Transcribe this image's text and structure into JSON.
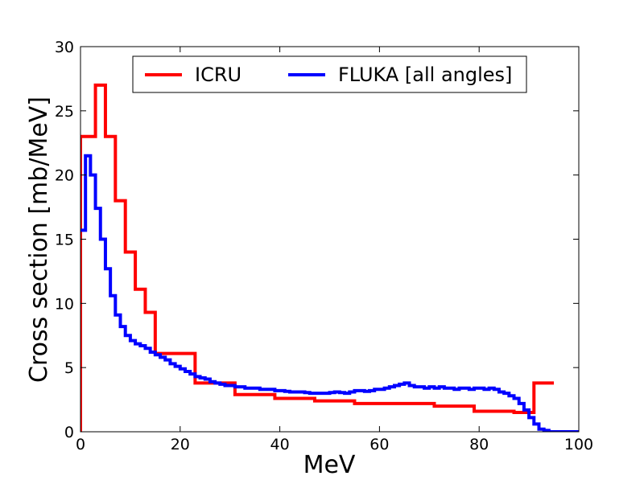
{
  "chart_data": {
    "type": "line",
    "step": true,
    "title": "",
    "xlabel": "MeV",
    "ylabel": "Cross section [mb/MeV]",
    "xlim": [
      0,
      100
    ],
    "ylim": [
      0,
      30
    ],
    "xticks": [
      0,
      20,
      40,
      60,
      80,
      100
    ],
    "yticks": [
      0,
      5,
      10,
      15,
      20,
      25,
      30
    ],
    "grid": false,
    "legend_position": "top-center",
    "series": [
      {
        "name": "ICRU",
        "color": "#ff0000",
        "x": [
          0,
          0,
          3,
          5,
          7,
          9,
          11,
          13,
          15,
          23,
          31,
          39,
          47,
          55,
          63,
          71,
          79,
          87,
          91,
          95
        ],
        "y": [
          0,
          23,
          27,
          23,
          18,
          14,
          11.1,
          9.3,
          6.1,
          3.8,
          2.9,
          2.6,
          2.4,
          2.2,
          2.2,
          2.0,
          1.6,
          1.5,
          3.8,
          3.8
        ]
      },
      {
        "name": "FLUKA [all angles]",
        "color": "#0000ff",
        "x": [
          0,
          1,
          2,
          3,
          4,
          5,
          6,
          7,
          8,
          9,
          10,
          11,
          12,
          13,
          14,
          15,
          16,
          17,
          18,
          19,
          20,
          21,
          22,
          23,
          24,
          25,
          26,
          27,
          28,
          29,
          30,
          31,
          32,
          33,
          34,
          35,
          36,
          37,
          38,
          39,
          40,
          41,
          42,
          43,
          44,
          45,
          46,
          47,
          48,
          49,
          50,
          51,
          52,
          53,
          54,
          55,
          56,
          57,
          58,
          59,
          60,
          61,
          62,
          63,
          64,
          65,
          66,
          67,
          68,
          69,
          70,
          71,
          72,
          73,
          74,
          75,
          76,
          77,
          78,
          79,
          80,
          81,
          82,
          83,
          84,
          85,
          86,
          87,
          88,
          89,
          90,
          91,
          92,
          93,
          94,
          95,
          100
        ],
        "y": [
          15.7,
          21.5,
          20.0,
          17.4,
          15.0,
          12.7,
          10.6,
          9.1,
          8.2,
          7.5,
          7.1,
          6.85,
          6.7,
          6.5,
          6.2,
          6.0,
          5.8,
          5.6,
          5.3,
          5.1,
          4.9,
          4.7,
          4.5,
          4.3,
          4.2,
          4.1,
          3.9,
          3.8,
          3.7,
          3.6,
          3.6,
          3.5,
          3.5,
          3.4,
          3.4,
          3.4,
          3.3,
          3.3,
          3.3,
          3.2,
          3.2,
          3.15,
          3.1,
          3.1,
          3.1,
          3.05,
          3.0,
          3.0,
          3.0,
          3.0,
          3.05,
          3.1,
          3.05,
          3.0,
          3.1,
          3.2,
          3.2,
          3.15,
          3.2,
          3.3,
          3.3,
          3.4,
          3.5,
          3.6,
          3.7,
          3.8,
          3.6,
          3.5,
          3.5,
          3.4,
          3.5,
          3.4,
          3.5,
          3.4,
          3.4,
          3.3,
          3.4,
          3.4,
          3.3,
          3.4,
          3.4,
          3.3,
          3.4,
          3.3,
          3.1,
          3.0,
          2.8,
          2.6,
          2.2,
          1.7,
          1.1,
          0.6,
          0.2,
          0.1,
          0,
          0,
          0
        ]
      }
    ]
  }
}
